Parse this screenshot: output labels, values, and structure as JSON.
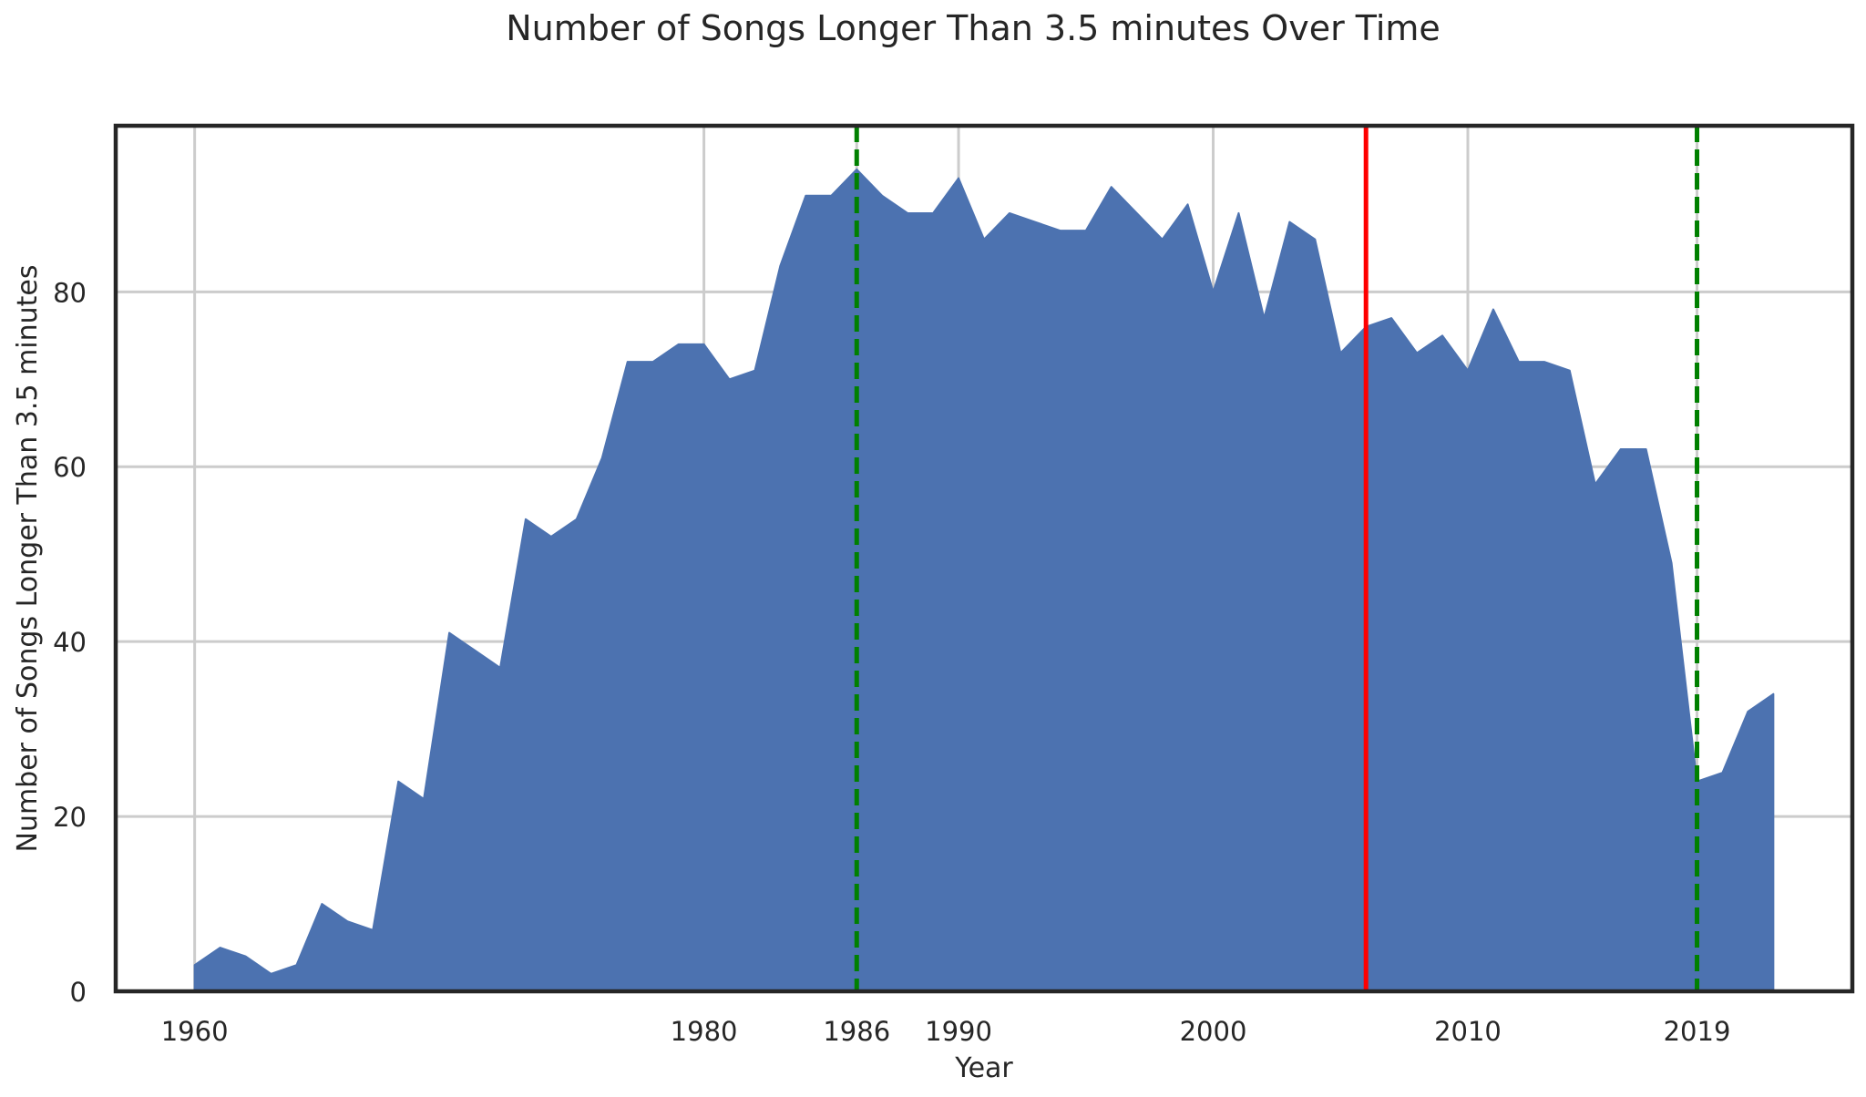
{
  "chart_data": {
    "type": "area",
    "title": "Number of Songs Longer Than 3.5 minutes Over Time",
    "xlabel": "Year",
    "ylabel": "Number of Songs Longer Than 3.5 minutes",
    "xlim": [
      1956.9,
      2025.1
    ],
    "ylim": [
      0,
      99
    ],
    "x_ticks": [
      1960,
      1980,
      1986,
      1990,
      2000,
      2010,
      2019
    ],
    "y_ticks": [
      0,
      20,
      40,
      60,
      80
    ],
    "grid": true,
    "series": [
      {
        "color": "#4c72b0",
        "x": [
          1960,
          1961,
          1962,
          1963,
          1964,
          1965,
          1966,
          1967,
          1968,
          1969,
          1970,
          1971,
          1972,
          1973,
          1974,
          1975,
          1976,
          1977,
          1978,
          1979,
          1980,
          1981,
          1982,
          1983,
          1984,
          1985,
          1986,
          1987,
          1988,
          1989,
          1990,
          1991,
          1992,
          1993,
          1994,
          1995,
          1996,
          1997,
          1998,
          1999,
          2000,
          2001,
          2002,
          2003,
          2004,
          2005,
          2006,
          2007,
          2008,
          2009,
          2010,
          2011,
          2012,
          2013,
          2014,
          2015,
          2016,
          2017,
          2018,
          2019,
          2020,
          2021,
          2022
        ],
        "values": [
          3,
          5,
          4,
          2,
          3,
          10,
          8,
          7,
          24,
          22,
          41,
          39,
          37,
          54,
          52,
          54,
          61,
          72,
          72,
          74,
          74,
          70,
          71,
          83,
          91,
          91,
          94,
          91,
          89,
          89,
          93,
          86,
          89,
          88,
          87,
          87,
          92,
          89,
          86,
          90,
          80,
          89,
          77,
          88,
          86,
          73,
          76,
          77,
          73,
          75,
          71,
          78,
          72,
          72,
          71,
          58,
          62,
          62,
          49,
          24,
          25,
          32,
          34
        ]
      }
    ],
    "reference_lines": [
      {
        "x": 1986,
        "style": "dashed",
        "color": "#008000"
      },
      {
        "x": 2019,
        "style": "dashed",
        "color": "#008000"
      },
      {
        "x": 2006,
        "style": "solid",
        "color": "#ff0000"
      }
    ]
  }
}
